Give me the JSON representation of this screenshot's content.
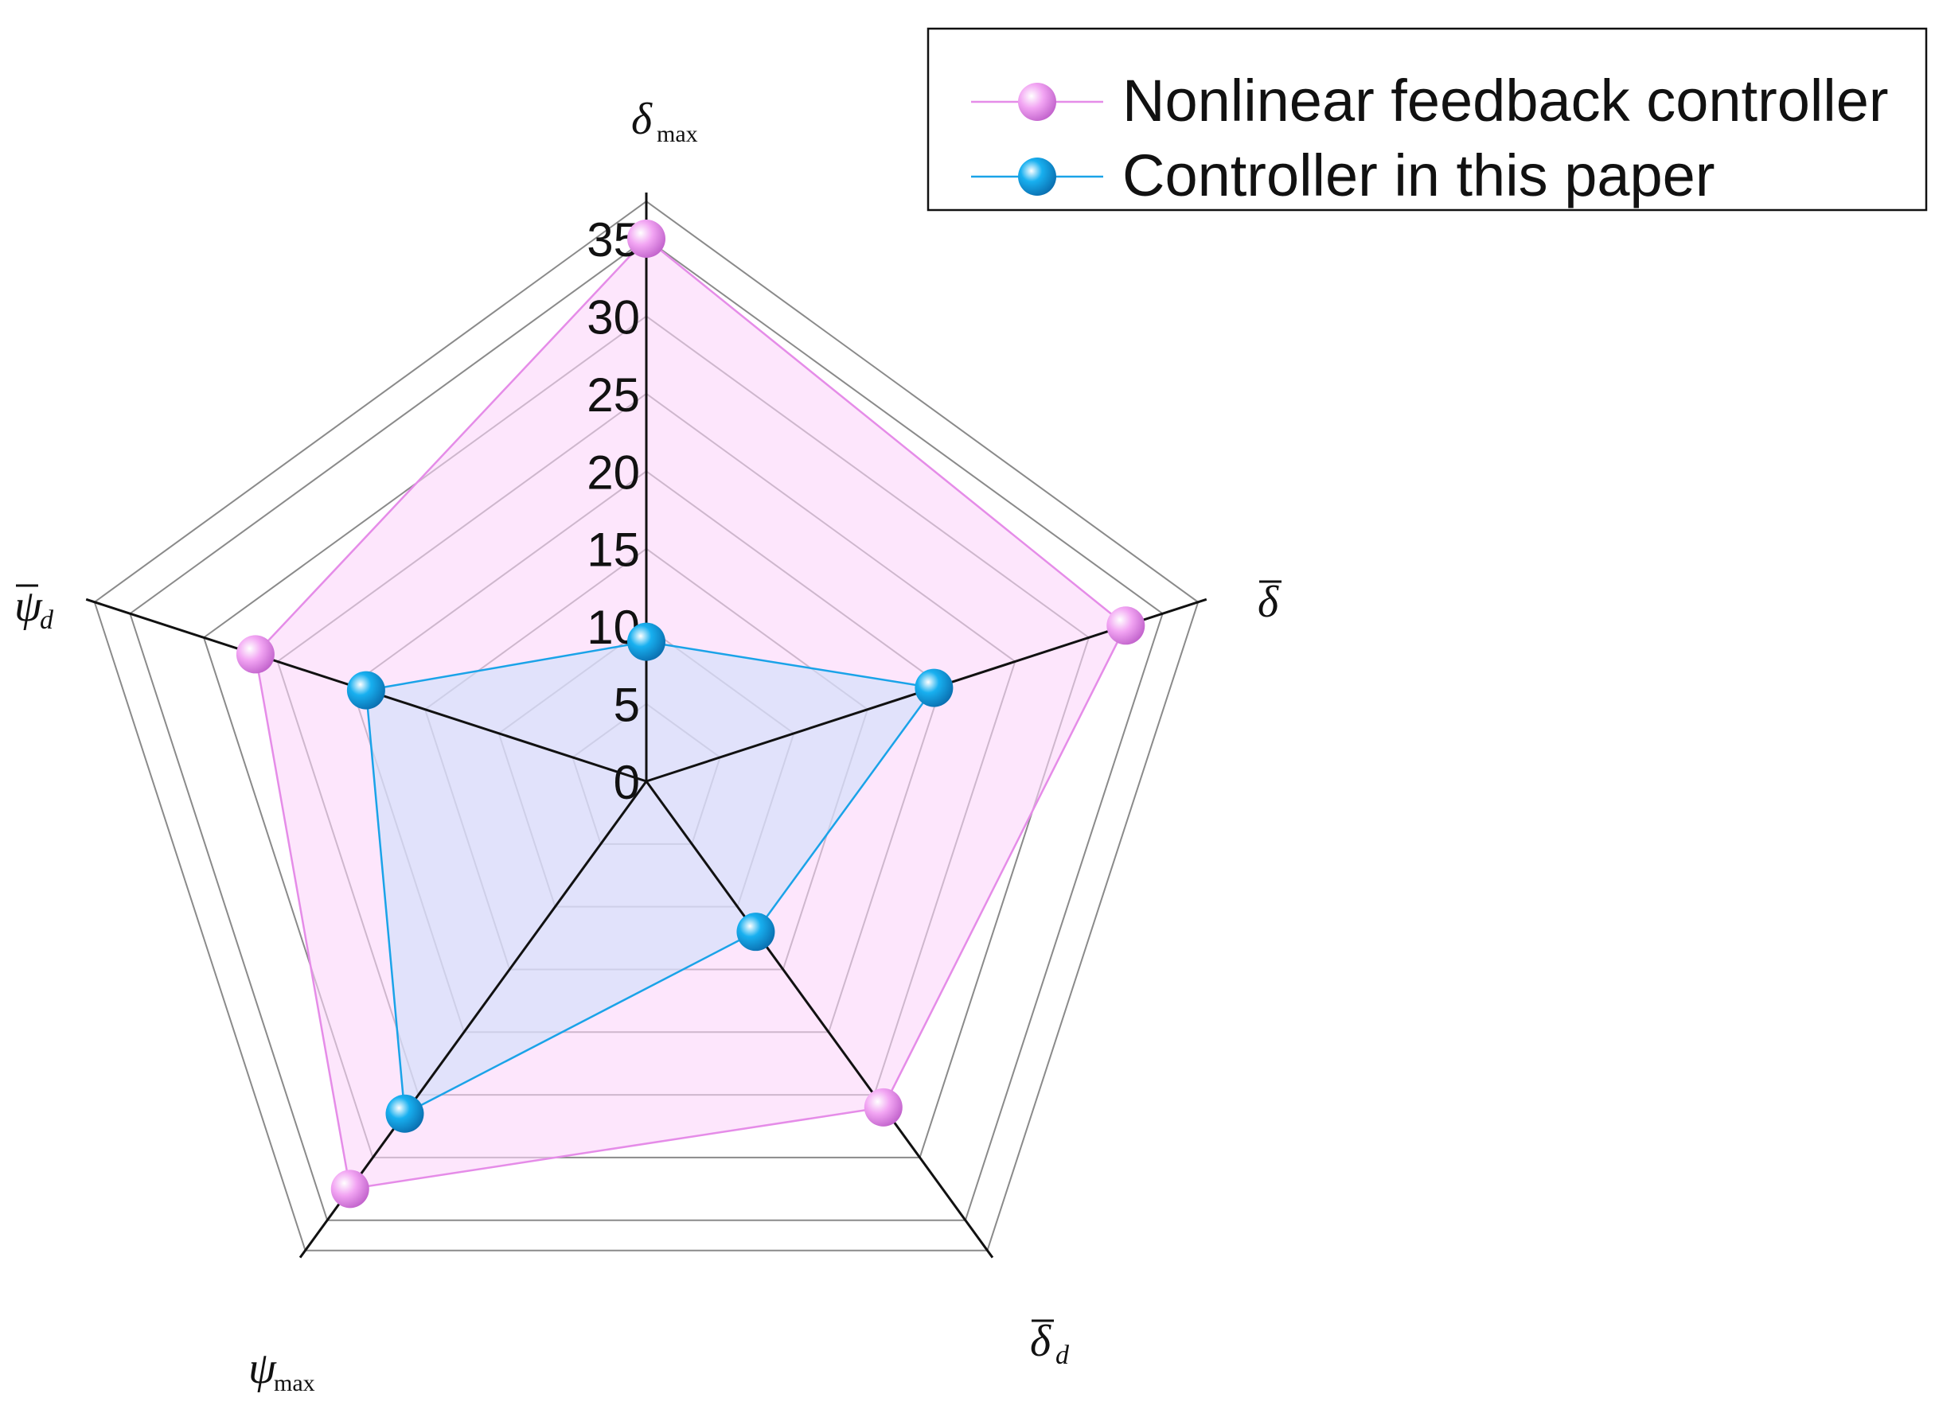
{
  "chart_data": {
    "type": "radar",
    "axes": [
      {
        "symbol": "δ",
        "subscript": "max",
        "bar": false
      },
      {
        "symbol": "δ",
        "subscript": "",
        "bar": true
      },
      {
        "symbol": "δ",
        "subscript": "d",
        "bar": true
      },
      {
        "symbol": "ψ",
        "subscript": "max",
        "bar": false
      },
      {
        "symbol": "ψ",
        "subscript": "d",
        "bar": true
      }
    ],
    "ticks": [
      "0",
      "5",
      "10",
      "15",
      "20",
      "25",
      "30",
      "35"
    ],
    "range": [
      0,
      35
    ],
    "grid": true,
    "legend_position": "top-right",
    "series": [
      {
        "name": "Nonlinear feedback controller",
        "values": [
          35,
          32.5,
          26,
          32.5,
          26.5
        ],
        "color": "#e58ce8",
        "fill": "#fbd6fa"
      },
      {
        "name": "Controller in this paper",
        "values": [
          9,
          19.5,
          12,
          26.5,
          19
        ],
        "color": "#1aa3e8",
        "fill": "#cfe0fa"
      }
    ]
  }
}
